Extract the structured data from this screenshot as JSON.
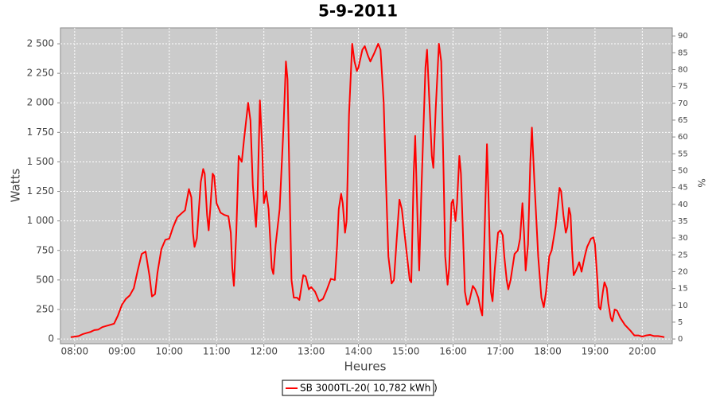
{
  "chart_data": {
    "type": "line",
    "title": "5-9-2011",
    "xlabel": "Heures",
    "ylabel": "Watts",
    "y2label": "%",
    "x": [
      "07:55",
      "08:00",
      "08:05",
      "08:10",
      "08:15",
      "08:20",
      "08:25",
      "08:30",
      "08:35",
      "08:40",
      "08:45",
      "08:50",
      "08:55",
      "09:00",
      "09:05",
      "09:10",
      "09:15",
      "09:20",
      "09:25",
      "09:30",
      "09:35",
      "09:38",
      "09:42",
      "09:45",
      "09:50",
      "09:55",
      "10:00",
      "10:05",
      "10:10",
      "10:15",
      "10:20",
      "10:25",
      "10:28",
      "10:30",
      "10:32",
      "10:35",
      "10:40",
      "10:43",
      "10:45",
      "10:48",
      "10:50",
      "10:52",
      "10:55",
      "10:57",
      "11:00",
      "11:05",
      "11:10",
      "11:15",
      "11:18",
      "11:20",
      "11:22",
      "11:25",
      "11:28",
      "11:32",
      "11:35",
      "11:40",
      "11:43",
      "11:46",
      "11:50",
      "11:52",
      "11:55",
      "11:58",
      "12:00",
      "12:03",
      "12:06",
      "12:10",
      "12:12",
      "12:15",
      "12:20",
      "12:25",
      "12:28",
      "12:30",
      "12:32",
      "12:35",
      "12:38",
      "12:42",
      "12:45",
      "12:50",
      "12:53",
      "12:57",
      "13:00",
      "13:05",
      "13:10",
      "13:15",
      "13:20",
      "13:25",
      "13:30",
      "13:33",
      "13:35",
      "13:38",
      "13:40",
      "13:43",
      "13:45",
      "13:48",
      "13:52",
      "13:55",
      "13:58",
      "14:00",
      "14:05",
      "14:08",
      "14:12",
      "14:15",
      "14:20",
      "14:25",
      "14:28",
      "14:32",
      "14:35",
      "14:38",
      "14:42",
      "14:45",
      "14:48",
      "14:52",
      "14:55",
      "15:00",
      "15:05",
      "15:07",
      "15:10",
      "15:12",
      "15:15",
      "15:17",
      "15:20",
      "15:25",
      "15:27",
      "15:30",
      "15:33",
      "15:35",
      "15:38",
      "15:42",
      "15:45",
      "15:48",
      "15:50",
      "15:53",
      "15:55",
      "15:58",
      "16:00",
      "16:03",
      "16:05",
      "16:08",
      "16:10",
      "16:13",
      "16:15",
      "16:18",
      "16:20",
      "16:25",
      "16:28",
      "16:32",
      "16:35",
      "16:37",
      "16:40",
      "16:43",
      "16:45",
      "16:48",
      "16:50",
      "16:53",
      "16:57",
      "17:00",
      "17:03",
      "17:05",
      "17:08",
      "17:10",
      "17:13",
      "17:18",
      "17:22",
      "17:25",
      "17:28",
      "17:30",
      "17:32",
      "17:35",
      "17:38",
      "17:40",
      "17:43",
      "17:48",
      "17:52",
      "17:55",
      "17:58",
      "18:02",
      "18:05",
      "18:10",
      "18:15",
      "18:17",
      "18:20",
      "18:23",
      "18:25",
      "18:27",
      "18:29",
      "18:31",
      "18:33",
      "18:36",
      "18:40",
      "18:43",
      "18:47",
      "18:50",
      "18:55",
      "18:58",
      "19:00",
      "19:03",
      "19:05",
      "19:07",
      "19:10",
      "19:12",
      "19:15",
      "19:17",
      "19:20",
      "19:22",
      "19:25",
      "19:28",
      "19:32",
      "19:38",
      "19:45",
      "19:50",
      "19:55",
      "20:00",
      "20:05",
      "20:10",
      "20:15",
      "20:20",
      "20:25",
      "20:28"
    ],
    "series": [
      {
        "name": "SB 3000TL-20( 10,782 kWh  )",
        "color": "#ff0000",
        "values": [
          15,
          20,
          25,
          40,
          50,
          60,
          75,
          80,
          100,
          110,
          120,
          130,
          200,
          290,
          340,
          370,
          430,
          580,
          720,
          740,
          530,
          360,
          380,
          560,
          760,
          840,
          850,
          950,
          1030,
          1060,
          1090,
          1270,
          1200,
          900,
          780,
          850,
          1330,
          1440,
          1400,
          1050,
          920,
          1100,
          1400,
          1380,
          1150,
          1070,
          1050,
          1040,
          900,
          600,
          450,
          900,
          1550,
          1500,
          1700,
          2000,
          1850,
          1300,
          950,
          1200,
          2020,
          1600,
          1150,
          1250,
          1100,
          600,
          550,
          800,
          1100,
          1800,
          2350,
          2200,
          1500,
          500,
          350,
          350,
          330,
          540,
          530,
          420,
          440,
          400,
          320,
          340,
          420,
          510,
          500,
          800,
          1100,
          1230,
          1150,
          900,
          1000,
          1900,
          2500,
          2350,
          2270,
          2300,
          2450,
          2480,
          2400,
          2350,
          2420,
          2500,
          2450,
          2000,
          1300,
          700,
          470,
          500,
          800,
          1180,
          1100,
          800,
          500,
          480,
          1400,
          1720,
          1000,
          580,
          1300,
          2300,
          2450,
          2000,
          1550,
          1450,
          1950,
          2500,
          2350,
          1400,
          700,
          460,
          600,
          1150,
          1180,
          1000,
          1150,
          1550,
          1400,
          800,
          400,
          290,
          300,
          450,
          420,
          350,
          250,
          200,
          900,
          1650,
          1200,
          400,
          320,
          600,
          900,
          920,
          880,
          700,
          500,
          420,
          500,
          720,
          750,
          850,
          1150,
          900,
          580,
          800,
          1500,
          1790,
          1350,
          700,
          350,
          270,
          400,
          700,
          750,
          950,
          1280,
          1250,
          1050,
          900,
          950,
          1110,
          1050,
          750,
          540,
          580,
          650,
          570,
          700,
          780,
          850,
          860,
          800,
          500,
          270,
          250,
          400,
          480,
          430,
          300,
          180,
          150,
          250,
          240,
          180,
          120,
          70,
          30,
          30,
          20,
          30,
          35,
          25,
          25,
          20,
          15
        ]
      }
    ],
    "xlim": [
      "07:42",
      "20:38"
    ],
    "xticks": [
      "08:00",
      "09:00",
      "10:00",
      "11:00",
      "12:00",
      "13:00",
      "14:00",
      "15:00",
      "16:00",
      "17:00",
      "18:00",
      "19:00",
      "20:00"
    ],
    "ylim": [
      -40,
      2635
    ],
    "yticks": [
      0,
      250,
      500,
      750,
      {
        "value": 1000,
        "label": "1 000"
      },
      {
        "value": 1250,
        "label": "1 250"
      },
      {
        "value": 1500,
        "label": "1 500"
      },
      {
        "value": 1750,
        "label": "1 750"
      },
      {
        "value": 2000,
        "label": "2 000"
      },
      {
        "value": 2250,
        "label": "2 250"
      },
      {
        "value": 2500,
        "label": "2 500"
      }
    ],
    "y2lim": [
      -1.4,
      92.4
    ],
    "y2ticks": [
      0,
      5,
      10,
      15,
      20,
      25,
      30,
      35,
      40,
      45,
      50,
      55,
      60,
      65,
      70,
      75,
      80,
      85,
      90
    ],
    "grid": true
  }
}
